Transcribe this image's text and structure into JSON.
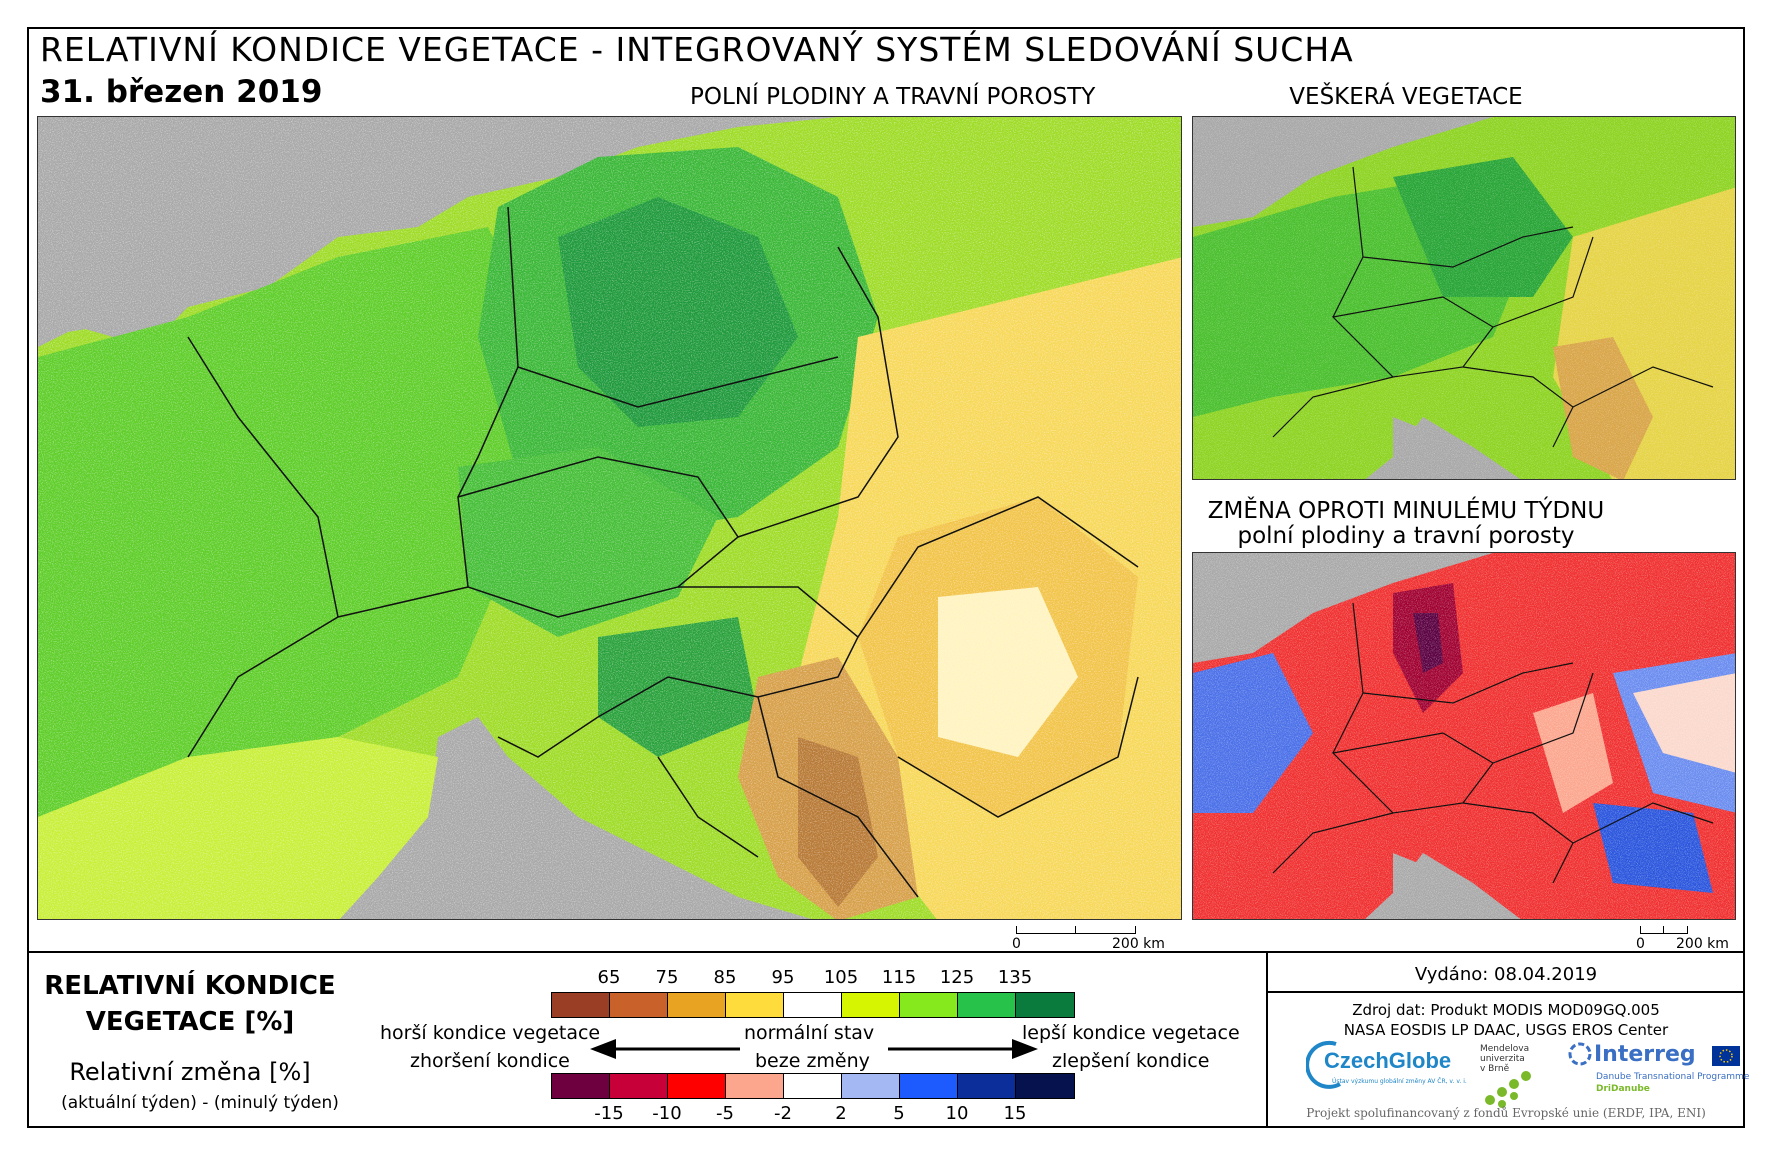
{
  "header": {
    "title": "RELATIVNÍ KONDICE VEGETACE - INTEGROVANÝ SYSTÉM SLEDOVÁNÍ SUCHA",
    "date": "31. březen 2019"
  },
  "maps": {
    "main_title": "POLNÍ PLODINY A TRAVNÍ POROSTY",
    "all_vegetation_title": "VEŠKERÁ VEGETACE",
    "change_title_line1": "ZMĚNA OPROTI MINULÉMU TÝDNU",
    "change_title_line2": "polní plodiny a travní porosty"
  },
  "scalebars": [
    {
      "start": "0",
      "end": "200 km"
    },
    {
      "start": "0",
      "end": "200 km"
    }
  ],
  "legend": {
    "title_line1": "RELATIVNÍ KONDICE",
    "title_line2": "VEGETACE [%]",
    "change_title": "Relativní změna [%]",
    "change_subtitle": "(aktuální týden) - (minulý týden)",
    "condition_ticks": [
      "65",
      "75",
      "85",
      "95",
      "105",
      "115",
      "125",
      "135"
    ],
    "condition_colors": [
      "#9a3f26",
      "#c8612a",
      "#e8a322",
      "#fedc3c",
      "#ffffff",
      "#d6f500",
      "#86e91e",
      "#26c24a",
      "#0a7a3d"
    ],
    "change_ticks": [
      "-15",
      "-10",
      "-5",
      "-2",
      "2",
      "5",
      "10",
      "15"
    ],
    "change_colors": [
      "#6e0040",
      "#c8003a",
      "#ff0000",
      "#fca68e",
      "#ffffff",
      "#a4b8f4",
      "#1e5bff",
      "#0b2e9a",
      "#06124d"
    ],
    "worse_condition": "horší kondice vegetace",
    "worse_change": "zhoršení kondice",
    "normal_state": "normální stav",
    "no_change": "beze změny",
    "better_condition": "lepší kondice vegetace",
    "better_change": "zlepšení kondice"
  },
  "info": {
    "issued": "Vydáno: 08.04.2019",
    "source_line1": "Zdroj dat: Produkt MODIS MOD09GQ.005",
    "source_line2": "NASA EOSDIS LP DAAC, USGS EROS Center",
    "funding": "Projekt spolufinancovaný z fondů Evropské unie (ERDF, IPA, ENI)"
  },
  "logos": {
    "czechglobe": "CzechGlobe",
    "czechglobe_tagline": "Ústav výzkumu globální změny AV ČR, v. v. i.",
    "mendel_line1": "Mendelova",
    "mendel_line2": "univerzita",
    "mendel_line3": "v Brně",
    "interreg": "Interreg",
    "interreg_line1": "Danube Transnational Programme",
    "interreg_line2": "DriDanube"
  }
}
